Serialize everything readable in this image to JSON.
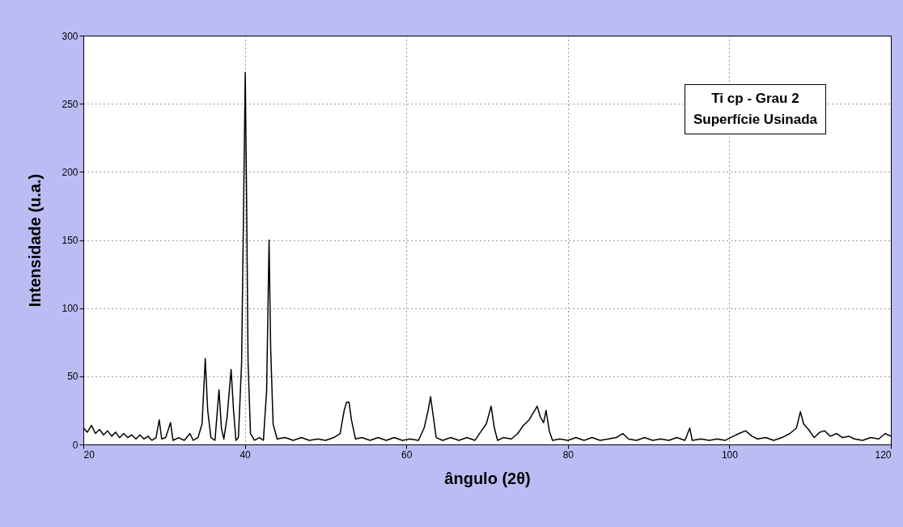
{
  "chart_data": {
    "type": "line",
    "xlabel": "ângulo (2θ)",
    "ylabel": "Intensidade (u.a.)",
    "annotations": [
      "Ti cp - Grau 2",
      "Superfície Usinada"
    ],
    "xlim": [
      20,
      120
    ],
    "xticks": [
      20,
      40,
      60,
      80,
      100,
      120
    ],
    "ylim": [
      0,
      300
    ],
    "yticks": [
      0,
      50,
      100,
      150,
      200,
      250,
      300
    ],
    "grid": true,
    "marker": "none",
    "line_style": "solid",
    "series": [
      {
        "color": "#000000",
        "x": [
          20,
          20.5,
          21,
          21.5,
          22,
          22.5,
          23,
          23.5,
          24,
          24.5,
          25,
          25.5,
          26,
          26.5,
          27,
          27.5,
          28,
          28.5,
          29,
          29.4,
          29.7,
          30.2,
          30.8,
          31.1,
          31.8,
          32.5,
          33.2,
          33.6,
          34.2,
          34.7,
          35.1,
          35.4,
          35.8,
          36.3,
          36.8,
          37.1,
          37.4,
          37.8,
          38.3,
          38.6,
          38.9,
          39.2,
          39.6,
          39.9,
          40.05,
          40.2,
          40.4,
          40.7,
          41.2,
          41.8,
          42.3,
          42.7,
          43.0,
          43.2,
          43.5,
          44,
          45,
          46,
          47,
          48,
          49,
          50,
          51,
          51.8,
          52.3,
          52.6,
          52.9,
          53.2,
          53.7,
          54.5,
          55.5,
          56.5,
          57.5,
          58.5,
          59.5,
          60.5,
          61.5,
          62.2,
          62.7,
          63.0,
          63.3,
          63.7,
          64.5,
          65.5,
          66.5,
          67.5,
          68.5,
          69.3,
          69.9,
          70.5,
          70.9,
          71.3,
          72,
          73,
          73.8,
          74.5,
          75.2,
          75.8,
          76.2,
          76.6,
          77.0,
          77.3,
          77.7,
          78.1,
          79,
          80,
          81,
          82,
          83,
          84,
          85,
          86,
          86.8,
          87.5,
          88.5,
          89.5,
          90.5,
          91.5,
          92.5,
          93.5,
          94.5,
          95.1,
          95.4,
          96.5,
          97.5,
          98.5,
          99.5,
          100.5,
          101.2,
          102,
          102.8,
          103.5,
          104.5,
          105.5,
          106.5,
          107.5,
          108.3,
          108.8,
          109.2,
          109.8,
          110.5,
          111.2,
          111.8,
          112.5,
          113.3,
          114,
          114.8,
          115.5,
          116.5,
          117.5,
          118.5,
          119.3,
          120
        ],
        "values": [
          12,
          9,
          14,
          8,
          11,
          7,
          10,
          6,
          9,
          5,
          8,
          5,
          7,
          4,
          7,
          4,
          6,
          3,
          5,
          18,
          4,
          5,
          16,
          3,
          5,
          3,
          8,
          3,
          5,
          15,
          63,
          25,
          5,
          3,
          40,
          12,
          4,
          20,
          55,
          25,
          3,
          5,
          60,
          200,
          273,
          190,
          60,
          8,
          3,
          5,
          3,
          40,
          150,
          70,
          15,
          4,
          5,
          3,
          5,
          3,
          4,
          3,
          5,
          8,
          25,
          31,
          31,
          18,
          4,
          5,
          3,
          5,
          3,
          5,
          3,
          4,
          3,
          12,
          25,
          35,
          22,
          5,
          3,
          5,
          3,
          5,
          3,
          10,
          15,
          28,
          12,
          3,
          5,
          4,
          8,
          14,
          18,
          24,
          28,
          20,
          16,
          25,
          10,
          3,
          4,
          3,
          5,
          3,
          5,
          3,
          4,
          5,
          8,
          4,
          3,
          5,
          3,
          4,
          3,
          5,
          3,
          12,
          3,
          4,
          3,
          4,
          3,
          6,
          8,
          10,
          6,
          4,
          5,
          3,
          5,
          8,
          12,
          24,
          15,
          11,
          5,
          9,
          10,
          6,
          8,
          5,
          6,
          4,
          3,
          5,
          4,
          8,
          6
        ]
      }
    ]
  }
}
